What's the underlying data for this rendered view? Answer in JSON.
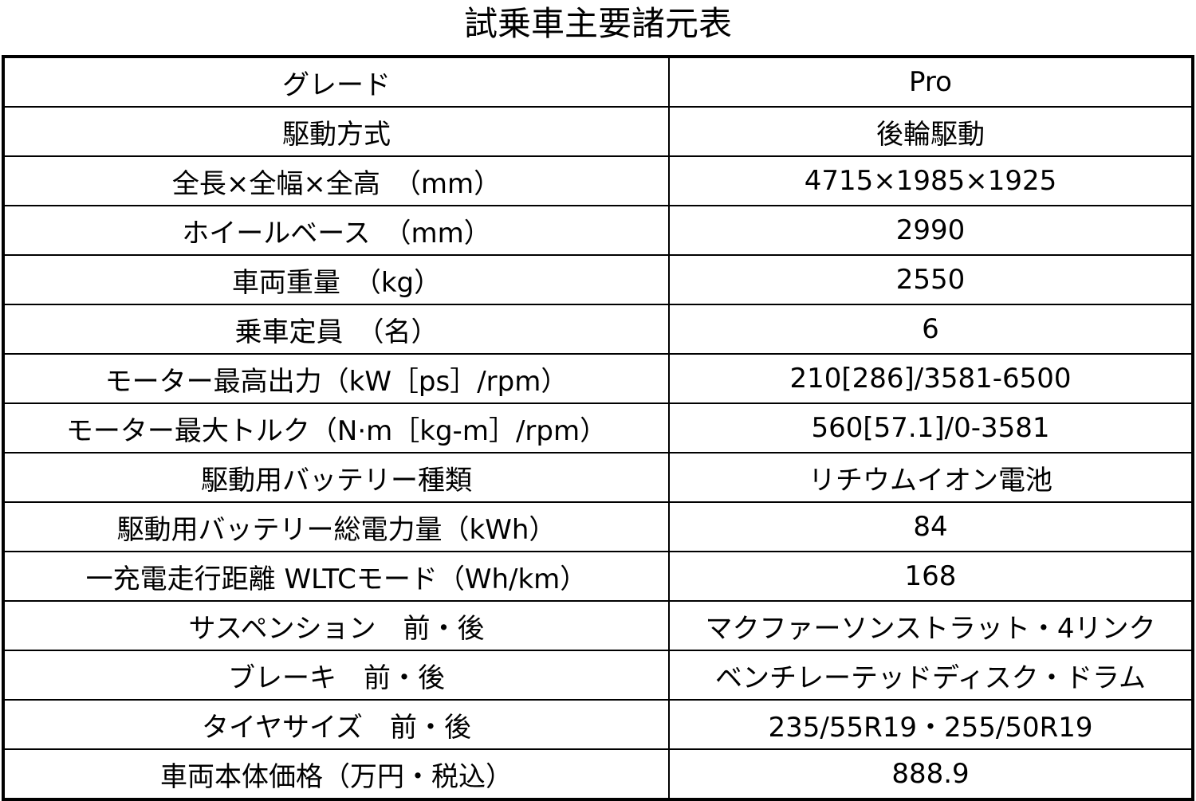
{
  "title": "試乗車主要諸元表",
  "rows": [
    {
      "label": "グレード",
      "value": "Pro"
    },
    {
      "label": "駆動方式",
      "value": "後輪駆動"
    },
    {
      "label": "全長×全幅×全高　（mm）",
      "value": "4715×1985×1925"
    },
    {
      "label": "ホイールベース　（mm）",
      "value": "2990"
    },
    {
      "label": "車両重量　（kg）",
      "value": "2550"
    },
    {
      "label": "乗車定員　（名）",
      "value": "6"
    },
    {
      "label": "モーター最高出力（kW［ps］/rpm）",
      "value": "210[286]/3581-6500"
    },
    {
      "label": "モーター最大トルク（N·m［kg-m］/rpm）",
      "value": "560[57.1]/0-3581"
    },
    {
      "label": "駆動用バッテリー種類",
      "value": "リチウムイオン電池"
    },
    {
      "label": "駆動用バッテリー総電力量（kWh）",
      "value": "84"
    },
    {
      "label": "一充電走行距離 WLTCモード（Wh/km）",
      "value": "168"
    },
    {
      "label": "サスペンション　前・後",
      "value": "マクファーソンストラット・4リンク"
    },
    {
      "label": "ブレーキ　前・後",
      "value": "ベンチレーテッドディスク・ドラム"
    },
    {
      "label": "タイヤサイズ　前・後",
      "value": "235/55R19・255/50R19"
    },
    {
      "label": "車両本体価格（万円・税込）",
      "value": "888.9"
    }
  ]
}
